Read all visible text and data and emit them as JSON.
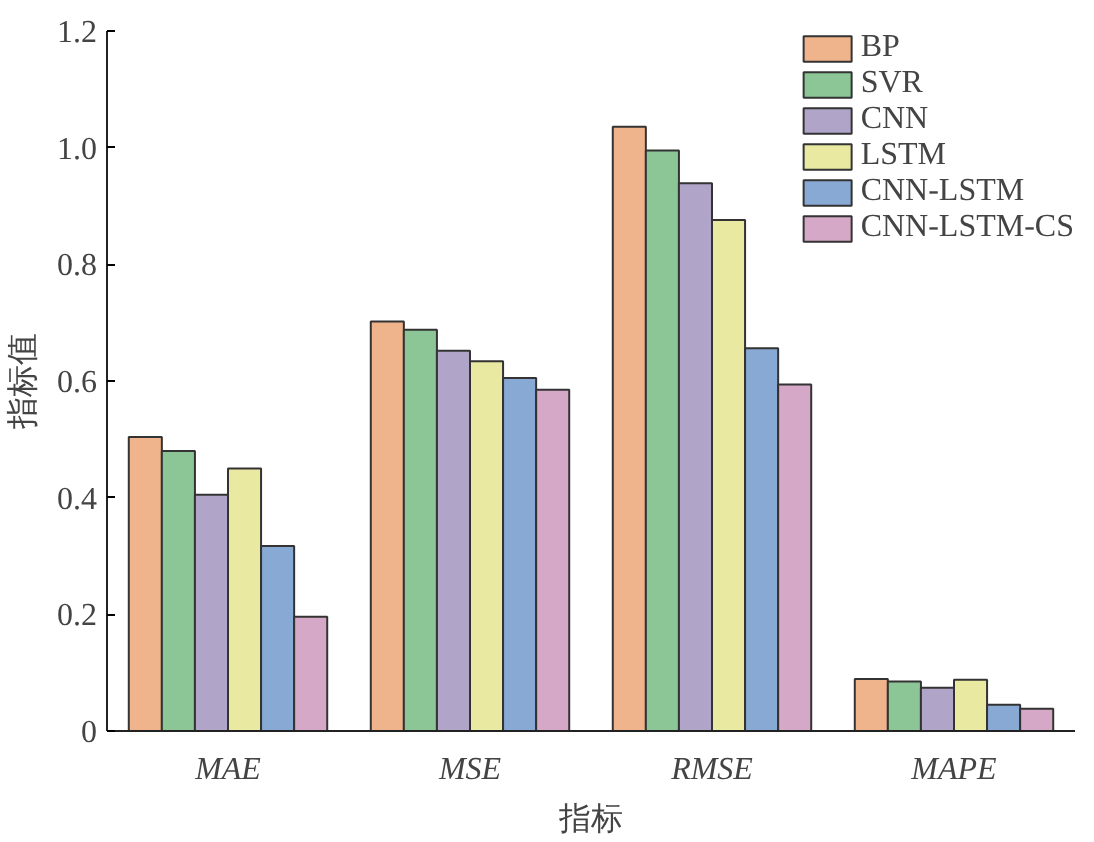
{
  "chart_data": {
    "type": "bar",
    "xlabel": "指标",
    "ylabel": "指标值",
    "categories": [
      "MAE",
      "MSE",
      "RMSE",
      "MAPE"
    ],
    "series": [
      {
        "name": "BP",
        "color": "#f0b48c",
        "values": [
          0.504,
          0.702,
          1.036,
          0.089
        ]
      },
      {
        "name": "SVR",
        "color": "#8cc697",
        "values": [
          0.48,
          0.688,
          0.995,
          0.085
        ]
      },
      {
        "name": "CNN",
        "color": "#b1a4c9",
        "values": [
          0.405,
          0.652,
          0.939,
          0.074
        ]
      },
      {
        "name": "LSTM",
        "color": "#e9e9a1",
        "values": [
          0.45,
          0.634,
          0.876,
          0.088
        ]
      },
      {
        "name": "CNN-LSTM",
        "color": "#87a9d3",
        "values": [
          0.317,
          0.605,
          0.656,
          0.045
        ]
      },
      {
        "name": "CNN-LSTM-CS",
        "color": "#d5a8c8",
        "values": [
          0.196,
          0.585,
          0.594,
          0.038
        ]
      }
    ],
    "ylim": [
      0,
      1.2
    ],
    "yticks": [
      0,
      0.2,
      0.4,
      0.6,
      {
        "value": 0.8,
        "label": "0.8"
      },
      {
        "value": 1.0,
        "label": "1.0"
      },
      1.2
    ],
    "grid": false,
    "legend": "top right"
  }
}
